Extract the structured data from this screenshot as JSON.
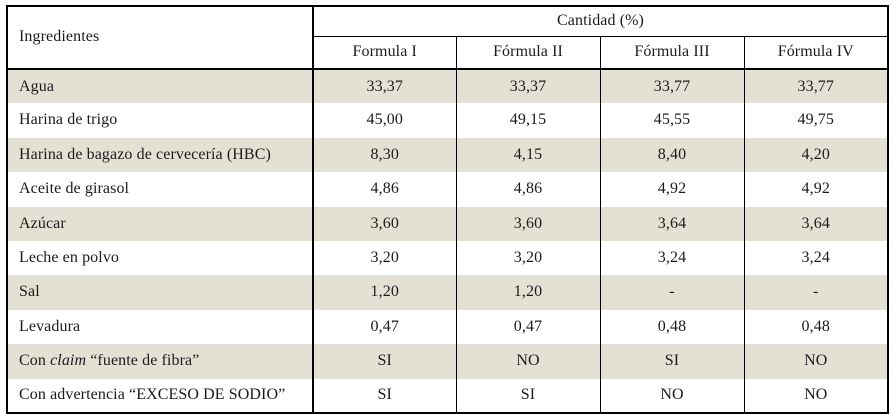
{
  "table": {
    "ingredient_header": "Ingredientes",
    "group_header": "Cantidad (%)",
    "columns": [
      "Formula I",
      "Fórmula II",
      "Fórmula III",
      "Fórmula IV"
    ],
    "rows": [
      {
        "label": "Agua",
        "values": [
          "33,37",
          "33,37",
          "33,77",
          "33,77"
        ]
      },
      {
        "label": "Harina de trigo",
        "values": [
          "45,00",
          "49,15",
          "45,55",
          "49,75"
        ]
      },
      {
        "label": "Harina de bagazo de cervecería (HBC)",
        "values": [
          "8,30",
          "4,15",
          "8,40",
          "4,20"
        ]
      },
      {
        "label": "Aceite de girasol",
        "values": [
          "4,86",
          "4,86",
          "4,92",
          "4,92"
        ]
      },
      {
        "label": "Azúcar",
        "values": [
          "3,60",
          "3,60",
          "3,64",
          "3,64"
        ]
      },
      {
        "label": "Leche en polvo",
        "values": [
          "3,20",
          "3,20",
          "3,24",
          "3,24"
        ]
      },
      {
        "label": "Sal",
        "values": [
          "1,20",
          "1,20",
          "-",
          "-"
        ]
      },
      {
        "label": "Levadura",
        "values": [
          "0,47",
          "0,47",
          "0,48",
          "0,48"
        ]
      },
      {
        "label": "Con claim “fuente de fibra”",
        "label_parts": {
          "prefix": "Con ",
          "italic": "claim",
          "suffix": " “fuente de fibra”"
        },
        "values": [
          "SI",
          "NO",
          "SI",
          "NO"
        ]
      },
      {
        "label": "Con advertencia “EXCESO DE SODIO”",
        "values": [
          "SI",
          "SI",
          "NO",
          "NO"
        ]
      }
    ],
    "colors": {
      "stripe": "#e3e1d3",
      "border": "#000000",
      "text": "#1b1b1b"
    }
  }
}
